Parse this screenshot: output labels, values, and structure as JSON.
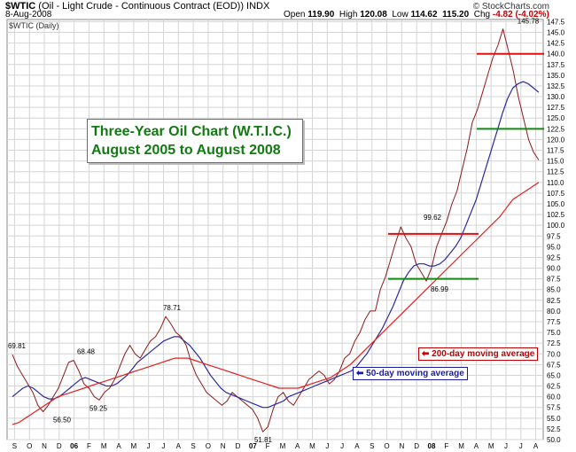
{
  "header": {
    "symbol": "$WTIC",
    "description": " (Oil - Light Crude - Continuous Contract (EOD))  INDX",
    "date": "8-Aug-2008",
    "brand": "© StockCharts.com",
    "open_label": "Open",
    "open": "119.90",
    "high_label": "High",
    "high": "120.08",
    "low_label": "Low",
    "low": "114.62",
    "close": "115.20",
    "chg_label": "Chg",
    "chg": "-4.82 (-4.02%)",
    "series_tag": "$WTIC (Daily)"
  },
  "callout": {
    "line1": "Three-Year Oil Chart (W.T.I.C.)",
    "line2": "August 2005 to August 2008"
  },
  "notes": {
    "ma200": "200-day moving average",
    "ma50": "50-day moving average"
  },
  "colors": {
    "price": "#8b1a1a",
    "ma50": "#2a2aa0",
    "ma200": "#e02020",
    "resistance": "#e01010",
    "support": "#128a12",
    "grid": "#d4d4d4",
    "callout_text": "#127a12"
  },
  "chart_data": {
    "type": "line",
    "ylim": [
      50,
      148
    ],
    "yticks": [
      50,
      52.5,
      55,
      57.5,
      60,
      62.5,
      65,
      67.5,
      70,
      72.5,
      75,
      77.5,
      80,
      82.5,
      85,
      87.5,
      90,
      92.5,
      95,
      97.5,
      100,
      102.5,
      105,
      107.5,
      110,
      112.5,
      115,
      117.5,
      120,
      122.5,
      125,
      127.5,
      130,
      132.5,
      135,
      137.5,
      140,
      142.5,
      145,
      147.5
    ],
    "x_labels": [
      "S",
      "O",
      "N",
      "D",
      "06",
      "F",
      "M",
      "A",
      "M",
      "J",
      "J",
      "A",
      "S",
      "O",
      "N",
      "D",
      "07",
      "F",
      "M",
      "A",
      "M",
      "J",
      "J",
      "A",
      "S",
      "O",
      "N",
      "D",
      "08",
      "F",
      "M",
      "A",
      "M",
      "J",
      "J",
      "A"
    ],
    "series": [
      {
        "name": "$WTIC",
        "values": [
          69.81,
          67,
          65,
          63,
          61,
          58,
          56.5,
          58,
          60,
          62,
          65,
          68,
          68.48,
          66,
          63,
          62,
          60,
          59.25,
          61,
          62,
          64,
          67,
          70,
          72,
          70,
          69,
          71,
          73,
          74,
          76,
          78.71,
          77,
          75,
          74,
          72,
          68,
          65,
          63,
          61,
          60,
          59,
          58,
          59,
          61,
          60,
          59,
          58,
          57,
          55,
          51.81,
          53,
          57,
          60,
          61,
          59,
          58,
          60,
          62,
          64,
          65,
          66,
          65,
          63,
          64,
          66,
          69,
          70,
          73,
          75,
          78,
          80,
          80,
          85,
          88,
          92,
          96,
          99.62,
          97,
          95,
          91,
          89,
          86.99,
          90,
          95,
          98,
          101,
          105,
          108,
          113,
          118,
          124,
          127,
          131,
          135,
          139,
          142,
          145.78,
          141,
          136,
          130,
          125,
          120,
          117,
          115.2
        ],
        "format": "close"
      },
      {
        "name": "50-day moving average",
        "values": [
          60,
          61,
          62,
          62.5,
          62,
          61,
          60,
          59.5,
          59.5,
          60,
          61,
          62,
          63,
          64,
          64.5,
          64,
          63.5,
          63,
          62.5,
          62.5,
          63,
          64,
          65,
          66.5,
          68,
          69,
          70,
          71,
          72,
          73,
          73.5,
          74,
          74,
          73,
          72,
          70.5,
          69,
          67,
          65,
          63.5,
          62,
          61,
          60.5,
          60,
          59.5,
          59,
          58.5,
          58,
          57.5,
          57.5,
          58,
          58.5,
          59,
          60,
          60.5,
          61,
          61.5,
          62,
          62.5,
          63,
          63.5,
          64,
          64.5,
          65,
          65.5,
          66,
          67,
          68.5,
          70,
          72,
          74,
          76,
          78.5,
          81,
          84,
          87,
          89,
          90.5,
          91,
          91,
          90.5,
          90.5,
          91,
          92,
          93.5,
          95,
          97,
          100,
          103,
          106,
          110,
          114,
          118,
          122,
          126,
          129.5,
          132,
          133,
          133.5,
          133,
          132,
          131
        ]
      },
      {
        "name": "200-day moving average",
        "values": [
          53.5,
          54,
          55,
          56,
          57,
          58,
          59,
          60,
          60.5,
          61,
          61.5,
          62,
          62.5,
          63,
          63.5,
          64,
          64.5,
          65,
          65.5,
          66,
          66.5,
          67,
          67.5,
          68,
          68.5,
          69,
          69,
          69,
          68.5,
          68,
          67.5,
          67,
          66.5,
          66,
          65.5,
          65,
          64.5,
          64,
          63.5,
          63,
          62.5,
          62,
          62,
          62,
          62,
          62.5,
          63,
          63.5,
          64,
          64.5,
          65.5,
          66.5,
          67.5,
          69,
          70.5,
          72,
          73.5,
          75,
          76.5,
          78,
          79.5,
          81,
          82.5,
          84,
          85.5,
          87,
          88.5,
          90,
          91.5,
          93,
          94.5,
          96,
          97.5,
          99,
          100.5,
          102,
          104,
          106,
          107,
          108,
          109,
          110
        ]
      }
    ],
    "annotations": [
      {
        "text": "69.81",
        "value": 69.81
      },
      {
        "text": "56.50",
        "value": 56.5
      },
      {
        "text": "68.48",
        "value": 68.48
      },
      {
        "text": "59.25",
        "value": 59.25
      },
      {
        "text": "78.71",
        "value": 78.71
      },
      {
        "text": "51.81",
        "value": 51.81
      },
      {
        "text": "99.62",
        "value": 99.62
      },
      {
        "text": "86.99",
        "value": 86.99
      },
      {
        "text": "145.78",
        "value": 145.78
      }
    ],
    "levels": [
      {
        "kind": "resistance",
        "value": 98
      },
      {
        "kind": "support",
        "value": 87.5
      },
      {
        "kind": "resistance",
        "value": 140
      },
      {
        "kind": "support",
        "value": 122.5
      }
    ],
    "grid": true,
    "y_axis_side": "right"
  }
}
